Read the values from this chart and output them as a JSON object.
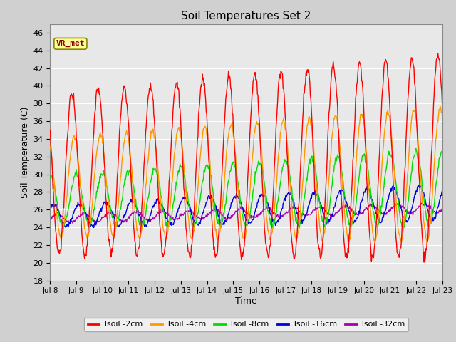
{
  "title": "Soil Temperatures Set 2",
  "xlabel": "Time",
  "ylabel": "Soil Temperature (C)",
  "ylim": [
    18,
    47
  ],
  "yticks": [
    18,
    20,
    22,
    24,
    26,
    28,
    30,
    32,
    34,
    36,
    38,
    40,
    42,
    44,
    46
  ],
  "x_tick_labels": [
    "Jul 8",
    "Jul 9",
    "Jul 10",
    "Jul 11",
    "Jul 12",
    "Jul 13",
    "Jul 14",
    "Jul 15",
    "Jul 16",
    "Jul 17",
    "Jul 18",
    "Jul 19",
    "Jul 20",
    "Jul 21",
    "Jul 22",
    "Jul 23"
  ],
  "annotation_text": "VR_met",
  "colors": {
    "Tsoil -2cm": "#ff0000",
    "Tsoil -4cm": "#ff9900",
    "Tsoil -8cm": "#00dd00",
    "Tsoil -16cm": "#0000dd",
    "Tsoil -32cm": "#aa00aa"
  },
  "fig_bg_color": "#d0d0d0",
  "ax_bg_color": "#e8e8e8",
  "grid_color": "#ffffff",
  "linewidth": 1.0
}
